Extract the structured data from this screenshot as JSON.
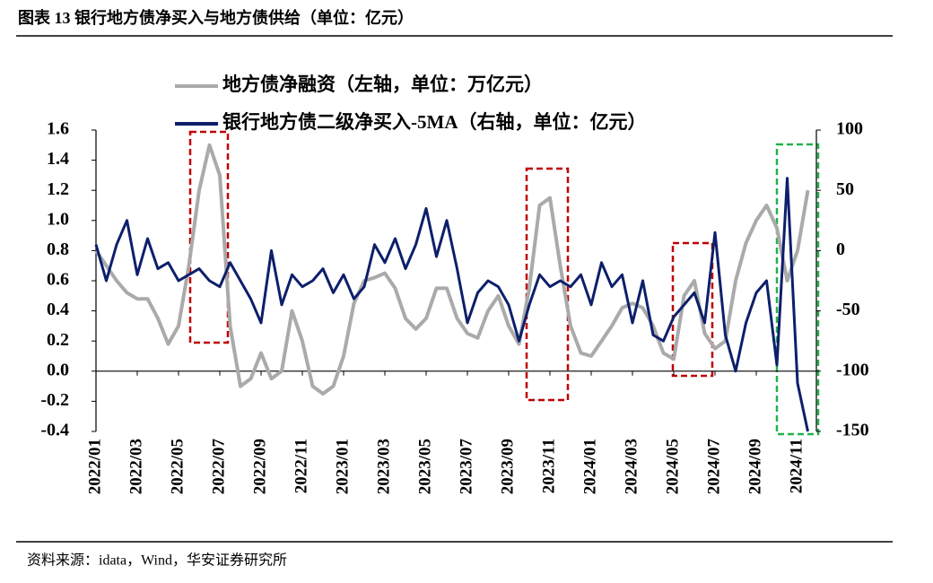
{
  "chart_data": {
    "type": "line",
    "title": "图表 13 银行地方债净买入与地方债供给（单位：亿元）",
    "source": "资料来源：idata，Wind，华安证券研究所",
    "categories": [
      "2022/01",
      null,
      null,
      null,
      "2022/03",
      null,
      null,
      null,
      "2022/05",
      null,
      null,
      null,
      "2022/07",
      null,
      null,
      null,
      "2022/09",
      null,
      null,
      null,
      "2022/11",
      null,
      null,
      null,
      "2023/01",
      null,
      null,
      null,
      "2023/03",
      null,
      null,
      null,
      "2023/05",
      null,
      null,
      null,
      "2023/07",
      null,
      null,
      null,
      "2023/09",
      null,
      null,
      null,
      "2023/11",
      null,
      null,
      null,
      "2024/01",
      null,
      null,
      null,
      "2024/03",
      null,
      null,
      null,
      "2024/05",
      null,
      null,
      null,
      "2024/07",
      null,
      null,
      null,
      "2024/09",
      null,
      null,
      null,
      "2024/11",
      null
    ],
    "series": [
      {
        "name": "地方债净融资（左轴，单位：万亿元）",
        "color": "#aaaaaa",
        "axis": "y",
        "values": [
          0.8,
          0.7,
          0.6,
          0.52,
          0.48,
          0.48,
          0.35,
          0.18,
          0.3,
          0.7,
          1.2,
          1.5,
          1.3,
          0.3,
          -0.1,
          -0.05,
          0.12,
          -0.05,
          0.0,
          0.4,
          0.2,
          -0.1,
          -0.15,
          -0.1,
          0.1,
          0.45,
          0.6,
          0.62,
          0.65,
          0.55,
          0.35,
          0.28,
          0.35,
          0.55,
          0.55,
          0.35,
          0.25,
          0.22,
          0.4,
          0.5,
          0.3,
          0.18,
          0.55,
          1.1,
          1.15,
          0.7,
          0.3,
          0.12,
          0.1,
          0.2,
          0.3,
          0.42,
          0.45,
          0.42,
          0.3,
          0.12,
          0.08,
          0.5,
          0.6,
          0.25,
          0.15,
          0.2,
          0.6,
          0.85,
          1.0,
          1.1,
          0.95,
          0.6,
          0.8,
          1.2
        ]
      },
      {
        "name": "银行地方债二级净买入-5MA（右轴，单位：亿元）",
        "color": "#0d1f6b",
        "axis": "y2",
        "values": [
          5,
          -25,
          5,
          25,
          -20,
          10,
          -15,
          -10,
          -25,
          -20,
          -15,
          -25,
          -30,
          -10,
          -25,
          -40,
          -60,
          0,
          -45,
          -20,
          -30,
          -25,
          -15,
          -35,
          -20,
          -40,
          -30,
          5,
          -10,
          10,
          -15,
          5,
          35,
          -5,
          25,
          -15,
          -60,
          -35,
          -25,
          -30,
          -45,
          -75,
          -45,
          -20,
          -30,
          -25,
          -30,
          -20,
          -45,
          -10,
          -30,
          -20,
          -60,
          -25,
          -70,
          -75,
          -55,
          -45,
          -35,
          -60,
          15,
          -70,
          -100,
          -60,
          -35,
          -25,
          -95,
          60,
          -110,
          -150
        ]
      }
    ],
    "ylim": [
      -0.4,
      1.6
    ],
    "yticks": [
      -0.4,
      -0.2,
      {
        "value": 0,
        "label": "0.0"
      },
      0.2,
      0.4,
      0.6,
      0.8,
      {
        "value": 1,
        "label": "1.0"
      },
      1.2,
      1.4,
      1.6
    ],
    "y2lim": [
      -150,
      100
    ],
    "y2ticks": [
      -150,
      -100,
      -50,
      0,
      50,
      100
    ]
  }
}
